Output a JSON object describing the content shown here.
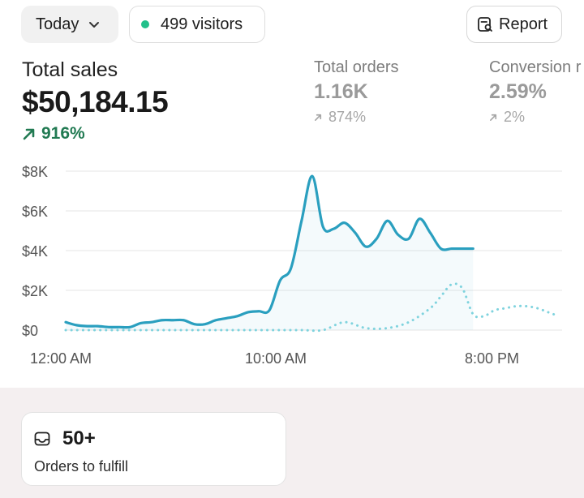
{
  "toolbar": {
    "date_label": "Today",
    "visitors_label": "499 visitors",
    "report_label": "Report"
  },
  "metrics": {
    "total_sales": {
      "label": "Total sales",
      "value": "$50,184.15",
      "delta": "916%"
    },
    "total_orders": {
      "label": "Total orders",
      "value": "1.16K",
      "delta": "874%"
    },
    "conversion": {
      "label": "Conversion r",
      "value": "2.59%",
      "delta": "2%"
    }
  },
  "colors": {
    "accent": "#2a9fbf",
    "comparison": "#7fd3de",
    "positive": "#217a52",
    "visitor_dot": "#22c08a",
    "grid": "#e6e6e6"
  },
  "chart_data": {
    "type": "line",
    "title": "",
    "xlabel": "",
    "ylabel": "",
    "y_ticks": [
      "$8K",
      "$6K",
      "$4K",
      "$2K",
      "$0"
    ],
    "y_tick_values": [
      8000,
      6000,
      4000,
      2000,
      0
    ],
    "x_ticks": [
      "12:00 AM",
      "10:00 AM",
      "8:00 PM"
    ],
    "x_tick_hours": [
      0,
      10,
      20
    ],
    "ylim": [
      0,
      8000
    ],
    "xlim": [
      0,
      23
    ],
    "grid": true,
    "series": [
      {
        "style": "solid",
        "x": [
          0,
          0.5,
          1,
          1.5,
          2,
          2.5,
          3,
          3.5,
          4,
          4.5,
          5,
          5.5,
          6,
          6.5,
          7,
          7.5,
          8,
          8.5,
          9,
          9.5,
          10,
          10.5,
          11,
          11.5,
          12,
          12.5,
          13,
          13.5,
          14,
          14.5,
          15,
          15.5,
          16,
          16.5,
          17,
          17.5,
          18,
          18.5,
          19
        ],
        "values": [
          400,
          250,
          200,
          200,
          150,
          150,
          150,
          350,
          400,
          500,
          500,
          500,
          300,
          300,
          500,
          600,
          700,
          900,
          950,
          1000,
          2500,
          3100,
          5500,
          7750,
          5200,
          5100,
          5400,
          4900,
          4200,
          4600,
          5500,
          4800,
          4600,
          5600,
          4900,
          4100,
          4100,
          4100,
          4100
        ]
      },
      {
        "style": "dotted",
        "x": [
          0,
          1,
          2,
          3,
          4,
          5,
          6,
          7,
          8,
          9,
          10,
          11,
          12,
          13,
          14,
          15,
          16,
          17,
          17.5,
          18,
          18.5,
          19,
          19.5,
          20,
          20.5,
          21,
          21.5,
          22,
          22.5,
          23
        ],
        "values": [
          0,
          0,
          0,
          0,
          0,
          0,
          0,
          0,
          0,
          0,
          0,
          0,
          0,
          400,
          100,
          100,
          400,
          1100,
          1700,
          2300,
          2100,
          800,
          700,
          1000,
          1100,
          1200,
          1200,
          1100,
          900,
          700
        ]
      }
    ]
  },
  "fulfill": {
    "count": "50+",
    "label": "Orders to fulfill"
  }
}
